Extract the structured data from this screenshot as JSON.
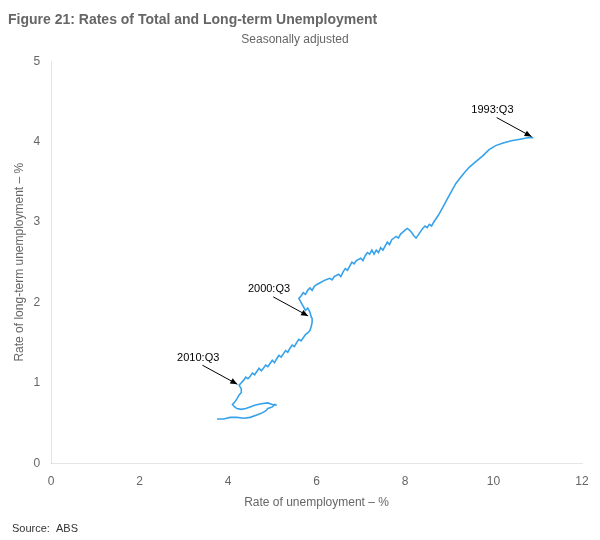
{
  "chart_data": {
    "type": "line",
    "title": "Figure 21: Rates of Total and Long-term Unemployment",
    "subtitle": "Seasonally adjusted",
    "xlabel": "Rate of unemployment – %",
    "ylabel": "Rate of long-term unemployment – %",
    "source": "Source:  ABS",
    "xlim": [
      0,
      12
    ],
    "ylim": [
      0,
      5
    ],
    "xticks": [
      0,
      2,
      4,
      6,
      8,
      10,
      12
    ],
    "yticks": [
      0,
      1,
      2,
      3,
      4,
      5
    ],
    "grid": false,
    "annotations": [
      {
        "label": "1993:Q3",
        "x": 10.9,
        "y": 4.05
      },
      {
        "label": "2000:Q3",
        "x": 5.85,
        "y": 1.82
      },
      {
        "label": "2010:Q3",
        "x": 4.25,
        "y": 0.97
      }
    ],
    "x": [
      3.75,
      3.9,
      4.05,
      4.2,
      4.35,
      4.5,
      4.65,
      4.75,
      4.85,
      4.9,
      5.0,
      5.05,
      5.1,
      5.0,
      4.9,
      4.75,
      4.6,
      4.5,
      4.4,
      4.3,
      4.2,
      4.15,
      4.1,
      4.15,
      4.2,
      4.25,
      4.3,
      4.3,
      4.25,
      4.3,
      4.35,
      4.4,
      4.45,
      4.5,
      4.55,
      4.6,
      4.65,
      4.7,
      4.75,
      4.8,
      4.85,
      4.9,
      4.95,
      5.0,
      5.05,
      5.1,
      5.15,
      5.2,
      5.25,
      5.3,
      5.35,
      5.4,
      5.45,
      5.5,
      5.55,
      5.6,
      5.65,
      5.7,
      5.75,
      5.8,
      5.85,
      5.88,
      5.9,
      5.9,
      5.88,
      5.85,
      5.8,
      5.75,
      5.7,
      5.65,
      5.6,
      5.65,
      5.7,
      5.75,
      5.8,
      5.85,
      5.9,
      5.95,
      6.0,
      6.1,
      6.2,
      6.3,
      6.35,
      6.4,
      6.5,
      6.55,
      6.6,
      6.65,
      6.7,
      6.75,
      6.8,
      6.85,
      6.9,
      7.0,
      7.05,
      7.1,
      7.15,
      7.2,
      7.25,
      7.3,
      7.35,
      7.4,
      7.45,
      7.5,
      7.55,
      7.6,
      7.65,
      7.7,
      7.8,
      7.85,
      7.9,
      8.0,
      8.05,
      8.1,
      8.15,
      8.2,
      8.25,
      8.3,
      8.35,
      8.4,
      8.45,
      8.5,
      8.55,
      8.6,
      8.65,
      8.75,
      8.85,
      8.95,
      9.05,
      9.15,
      9.25,
      9.35,
      9.45,
      9.6,
      9.75,
      9.9,
      10.05,
      10.2,
      10.4,
      10.6,
      10.8,
      10.9
    ],
    "values": [
      0.55,
      0.55,
      0.57,
      0.57,
      0.56,
      0.57,
      0.6,
      0.62,
      0.65,
      0.68,
      0.7,
      0.73,
      0.72,
      0.73,
      0.75,
      0.74,
      0.72,
      0.7,
      0.68,
      0.67,
      0.68,
      0.7,
      0.73,
      0.76,
      0.8,
      0.85,
      0.88,
      0.92,
      0.97,
      1.0,
      1.03,
      1.07,
      1.05,
      1.08,
      1.12,
      1.1,
      1.14,
      1.18,
      1.15,
      1.18,
      1.22,
      1.2,
      1.24,
      1.28,
      1.25,
      1.3,
      1.34,
      1.32,
      1.36,
      1.4,
      1.38,
      1.43,
      1.47,
      1.45,
      1.5,
      1.54,
      1.52,
      1.56,
      1.6,
      1.62,
      1.65,
      1.7,
      1.75,
      1.8,
      1.82,
      1.88,
      1.93,
      1.9,
      1.95,
      2.0,
      2.05,
      2.08,
      2.12,
      2.1,
      2.15,
      2.18,
      2.15,
      2.2,
      2.22,
      2.25,
      2.28,
      2.3,
      2.28,
      2.32,
      2.35,
      2.32,
      2.38,
      2.42,
      2.4,
      2.45,
      2.5,
      2.48,
      2.52,
      2.55,
      2.52,
      2.58,
      2.62,
      2.6,
      2.65,
      2.6,
      2.65,
      2.62,
      2.68,
      2.65,
      2.7,
      2.75,
      2.72,
      2.78,
      2.82,
      2.8,
      2.85,
      2.9,
      2.92,
      2.9,
      2.87,
      2.83,
      2.8,
      2.84,
      2.88,
      2.92,
      2.95,
      2.93,
      2.97,
      2.95,
      3.0,
      3.08,
      3.18,
      3.28,
      3.38,
      3.48,
      3.55,
      3.62,
      3.68,
      3.75,
      3.82,
      3.9,
      3.95,
      3.98,
      4.01,
      4.03,
      4.05,
      4.05
    ]
  }
}
